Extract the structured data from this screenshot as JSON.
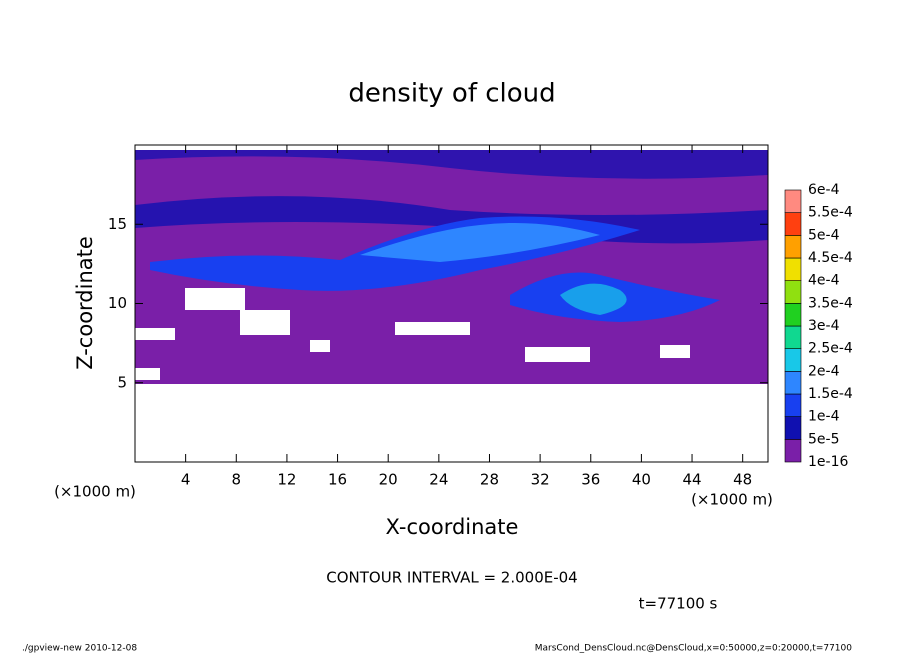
{
  "chart_data": {
    "type": "contour",
    "title": "density of cloud",
    "x_label": "X-coordinate",
    "y_label": "Z-coordinate",
    "x_unit_label": "(×1000 m)",
    "y_unit_label": "(×1000 m)",
    "xlim": [
      0,
      50
    ],
    "ylim": [
      0,
      20
    ],
    "xticks": [
      4,
      8,
      12,
      16,
      20,
      24,
      28,
      32,
      36,
      40,
      44,
      48
    ],
    "yticks": [
      5,
      10,
      15
    ],
    "levels": [
      {
        "value": 1e-16,
        "label": "1e-16"
      },
      {
        "value": 5e-05,
        "label": "5e-5"
      },
      {
        "value": 0.0001,
        "label": "1e-4"
      },
      {
        "value": 0.00015,
        "label": "1.5e-4"
      },
      {
        "value": 0.0002,
        "label": "2e-4"
      },
      {
        "value": 0.00025,
        "label": "2.5e-4"
      },
      {
        "value": 0.0003,
        "label": "3e-4"
      },
      {
        "value": 0.00035,
        "label": "3.5e-4"
      },
      {
        "value": 0.0004,
        "label": "4e-4"
      },
      {
        "value": 0.00045,
        "label": "4.5e-4"
      },
      {
        "value": 0.0005,
        "label": "5e-4"
      },
      {
        "value": 0.00055,
        "label": "5.5e-4"
      },
      {
        "value": 0.0006,
        "label": "6e-4"
      }
    ],
    "level_colors": [
      "#7a1fa8",
      "#1010b0",
      "#1840f0",
      "#2e86ff",
      "#18c8e8",
      "#10d890",
      "#20d020",
      "#90e010",
      "#f0e000",
      "#ffa000",
      "#ff4010",
      "#ff8a80"
    ],
    "contour_interval_text": "CONTOUR INTERVAL = 2.000E-04",
    "time_text": "t=77100 s",
    "footer_left": "./gpview-new  2010-12-08",
    "footer_right": "MarsCond_DensCloud.nc@DensCloud,x=0:50000,z=0:20000,t=77100"
  }
}
